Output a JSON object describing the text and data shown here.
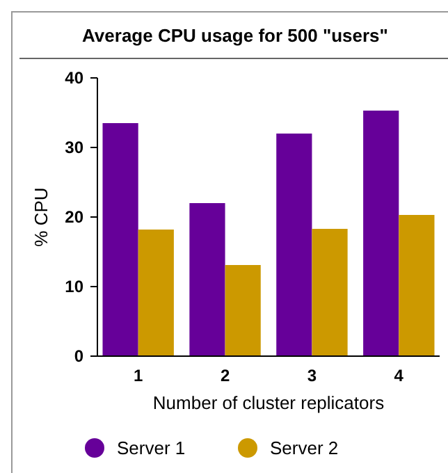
{
  "chart_data": {
    "type": "bar",
    "title": "Average CPU usage for 500 \"users\"",
    "xlabel": "Number of cluster replicators",
    "ylabel": "% CPU",
    "categories": [
      "1",
      "2",
      "3",
      "4"
    ],
    "series": [
      {
        "name": "Server 1",
        "color": "#660099",
        "values": [
          33.5,
          22,
          32,
          35.3
        ]
      },
      {
        "name": "Server 2",
        "color": "#cc9900",
        "values": [
          18.2,
          13.1,
          18.3,
          20.3
        ]
      }
    ],
    "ylim": [
      0,
      40
    ],
    "yticks": [
      0,
      10,
      20,
      30,
      40
    ],
    "legend": "bottom"
  }
}
